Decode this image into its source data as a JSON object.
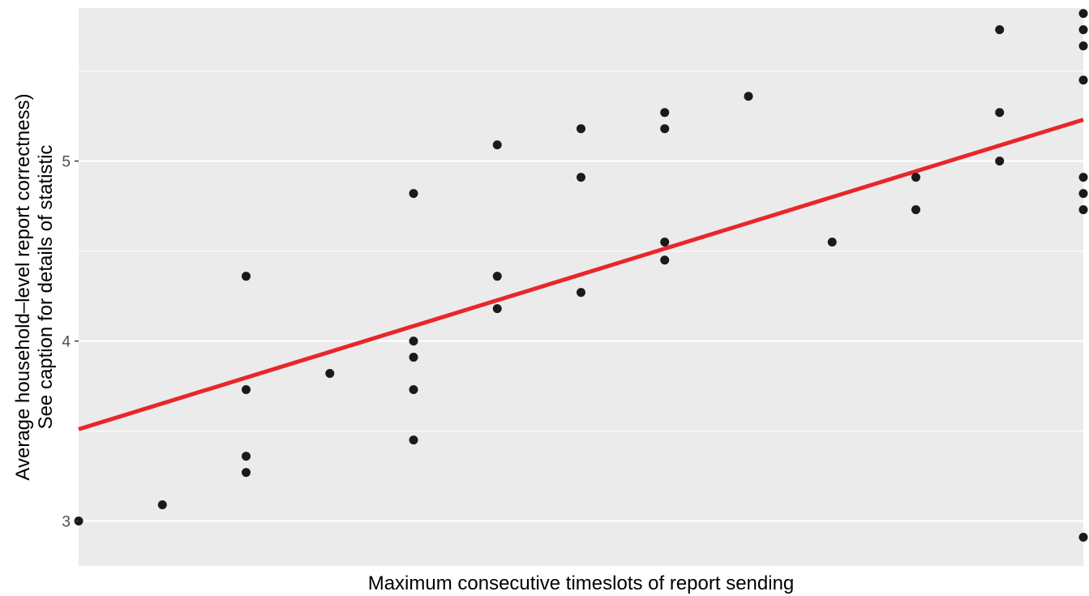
{
  "chart_data": {
    "type": "scatter",
    "title": "",
    "xlabel": "Maximum consecutive timeslots of report sending",
    "ylabel_lines": [
      "Average household–level report correctness)",
      "See caption for details of statistic"
    ],
    "y_ticks": [
      "3",
      "4",
      "5"
    ],
    "y_tick_values": [
      3,
      4,
      5
    ],
    "xlim": [
      0,
      12
    ],
    "ylim": [
      2.75,
      5.85
    ],
    "grid": true,
    "points": [
      {
        "x": 0,
        "y": 3.0
      },
      {
        "x": 1,
        "y": 3.09
      },
      {
        "x": 2,
        "y": 4.36
      },
      {
        "x": 2,
        "y": 3.73
      },
      {
        "x": 2,
        "y": 3.36
      },
      {
        "x": 2,
        "y": 3.27
      },
      {
        "x": 3,
        "y": 3.82
      },
      {
        "x": 4,
        "y": 4.82
      },
      {
        "x": 4,
        "y": 4.0
      },
      {
        "x": 4,
        "y": 3.91
      },
      {
        "x": 4,
        "y": 3.73
      },
      {
        "x": 4,
        "y": 3.45
      },
      {
        "x": 5,
        "y": 5.09
      },
      {
        "x": 5,
        "y": 4.36
      },
      {
        "x": 5,
        "y": 4.18
      },
      {
        "x": 6,
        "y": 5.18
      },
      {
        "x": 6,
        "y": 4.91
      },
      {
        "x": 6,
        "y": 4.27
      },
      {
        "x": 7,
        "y": 5.27
      },
      {
        "x": 7,
        "y": 5.18
      },
      {
        "x": 7,
        "y": 4.55
      },
      {
        "x": 7,
        "y": 4.45
      },
      {
        "x": 8,
        "y": 5.36
      },
      {
        "x": 9,
        "y": 4.55
      },
      {
        "x": 10,
        "y": 4.91
      },
      {
        "x": 10,
        "y": 4.73
      },
      {
        "x": 11,
        "y": 5.73
      },
      {
        "x": 11,
        "y": 5.27
      },
      {
        "x": 11,
        "y": 5.0
      },
      {
        "x": 12,
        "y": 5.82
      },
      {
        "x": 12,
        "y": 5.73
      },
      {
        "x": 12,
        "y": 5.64
      },
      {
        "x": 12,
        "y": 5.45
      },
      {
        "x": 12,
        "y": 4.91
      },
      {
        "x": 12,
        "y": 4.82
      },
      {
        "x": 12,
        "y": 4.73
      },
      {
        "x": 12,
        "y": 2.91
      }
    ],
    "fit_line": {
      "x": [
        0,
        12
      ],
      "y": [
        3.51,
        5.23
      ]
    },
    "colors": {
      "panel": "#ebebeb",
      "grid": "#ffffff",
      "points": "#1a1a1a",
      "fit_line": "#e8262b"
    }
  }
}
